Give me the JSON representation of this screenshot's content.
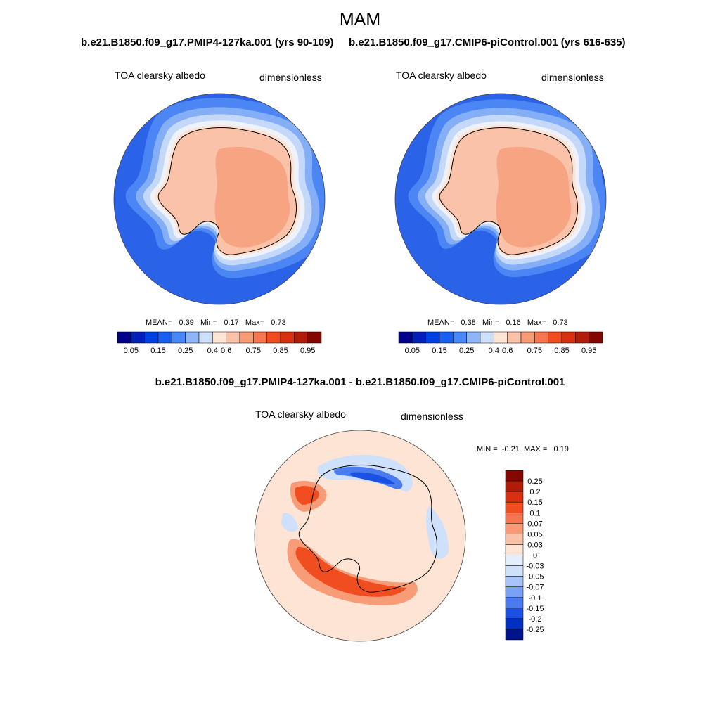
{
  "figure": {
    "season": "MAM",
    "case_left": "b.e21.B1850.f09_g17.PMIP4-127ka.001 (yrs 90-109)",
    "case_right": "b.e21.B1850.f09_g17.CMIP6-piControl.001 (yrs 616-635)",
    "diff_title": "b.e21.B1850.f09_g17.PMIP4-127ka.001 - b.e21.B1850.f09_g17.CMIP6-piControl.001"
  },
  "panels": [
    {
      "variable": "TOA clearsky albedo",
      "units": "dimensionless",
      "mean_label": "MEAN=",
      "mean": "0.39",
      "min_label": "Min=",
      "min": "0.17",
      "max_label": "Max=",
      "max": "0.73"
    },
    {
      "variable": "TOA clearsky albedo",
      "units": "dimensionless",
      "mean_label": "MEAN=",
      "mean": "0.38",
      "min_label": "Min=",
      "min": "0.16",
      "max_label": "Max=",
      "max": "0.73"
    },
    {
      "variable": "TOA clearsky albedo",
      "units": "dimensionless",
      "min_label": "MIN =",
      "min": "-0.21",
      "max_label": "MAX =",
      "max": "0.19"
    }
  ],
  "colorbar_main": {
    "colors": [
      "#00008a",
      "#0020b8",
      "#0040e0",
      "#1860f0",
      "#4888f8",
      "#90b4f8",
      "#cfe0fa",
      "#fde4d4",
      "#fac2a8",
      "#f89c78",
      "#f77650",
      "#f04d20",
      "#d83010",
      "#b01c08",
      "#820800"
    ],
    "tick_labels": [
      "0.05",
      "0.15",
      "0.25",
      "0.4",
      "0.6",
      "0.75",
      "0.85",
      "0.95"
    ]
  },
  "colorbar_diff": {
    "colors": [
      "#820800",
      "#b01c08",
      "#d83010",
      "#f04d20",
      "#f77650",
      "#f89c78",
      "#fac2a8",
      "#fde4d4",
      "#e4eefc",
      "#cfe0fa",
      "#a8c4f8",
      "#7aa2f4",
      "#4a7cf0",
      "#1a50e4",
      "#0030c0",
      "#00138a"
    ],
    "tick_labels": [
      "0.25",
      "0.2",
      "0.15",
      "0.1",
      "0.07",
      "0.05",
      "0.03",
      "0",
      "-0.03",
      "-0.05",
      "-0.07",
      "-0.1",
      "-0.15",
      "-0.2",
      "-0.25"
    ]
  },
  "map_colors": {
    "ocean_open": "#2a62e8",
    "ice_1": "#4c86f4",
    "ice_2": "#84aef6",
    "ice_3": "#c4d8fa",
    "ice_4": "#eef2fc",
    "ice_edge": "#fde4d4",
    "coast": "#fac2a8",
    "plateau": "#f7a482",
    "diff_bg": "#fde4d4",
    "diff_pos_1": "#f89c78",
    "diff_pos_2": "#f04d20",
    "diff_neg_1": "#cfe0fa",
    "diff_neg_2": "#4a7cf0",
    "diff_neg_3": "#1a50e4"
  }
}
